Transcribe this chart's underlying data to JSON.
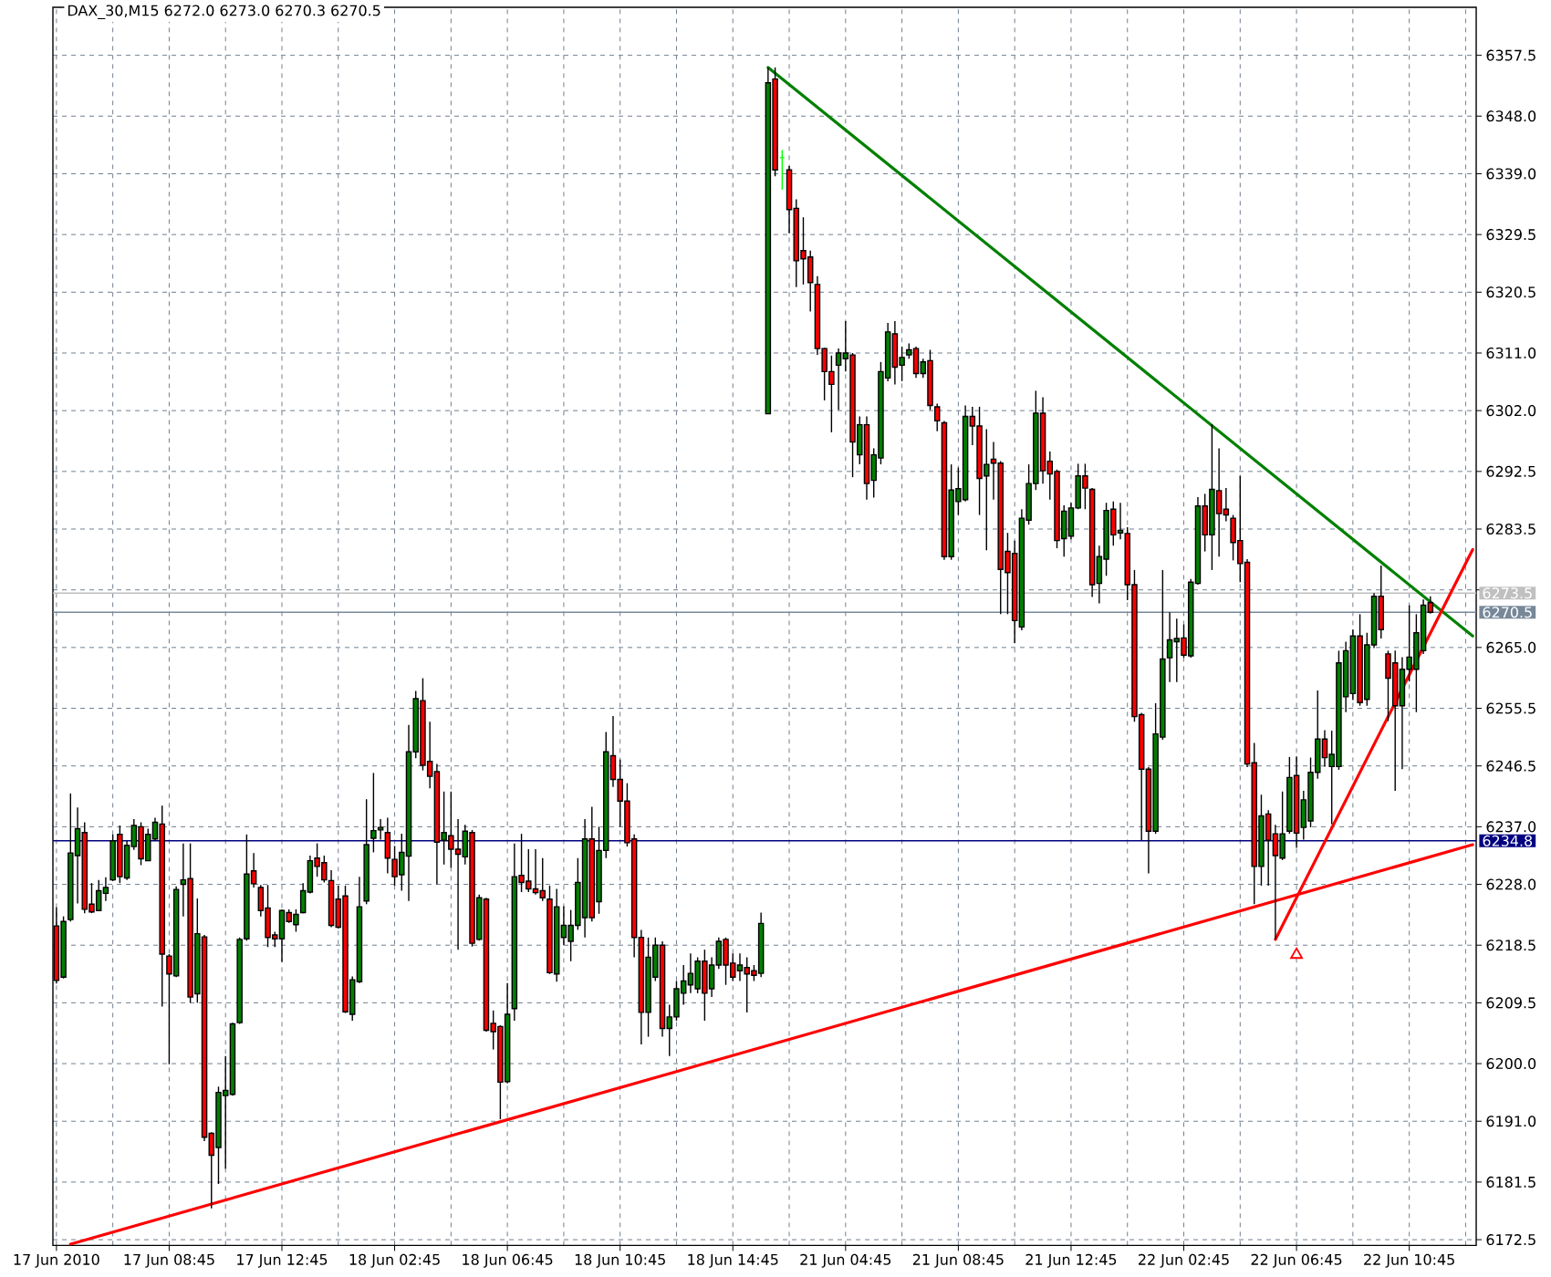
{
  "chart_data": {
    "type": "candlestick",
    "title": "DAX_30,M15 6272.0 6273.0 6270.3 6270.5",
    "categories": [
      "17 Jun 2010",
      null,
      null,
      null,
      null,
      null,
      null,
      null,
      null,
      null,
      null,
      null,
      null,
      null,
      null,
      null,
      "17 Jun 08:45",
      null,
      null,
      null,
      null,
      null,
      null,
      null,
      null,
      null,
      null,
      null,
      null,
      null,
      null,
      null,
      "17 Jun 12:45",
      null,
      null,
      null,
      null,
      null,
      null,
      null,
      null,
      null,
      null,
      null,
      null,
      null,
      null,
      null,
      "18 Jun 02:45",
      null,
      null,
      null,
      null,
      null,
      null,
      null,
      null,
      null,
      null,
      null,
      null,
      null,
      null,
      null,
      "18 Jun 06:45",
      null,
      null,
      null,
      null,
      null,
      null,
      null,
      null,
      null,
      null,
      null,
      null,
      null,
      null,
      null,
      "18 Jun 10:45",
      null,
      null,
      null,
      null,
      null,
      null,
      null,
      null,
      null,
      null,
      null,
      null,
      null,
      null,
      null,
      "18 Jun 14:45",
      null,
      null,
      null,
      null,
      null,
      null,
      null,
      null,
      null,
      null,
      null,
      null,
      null,
      null,
      null,
      "21 Jun 04:45",
      null,
      null,
      null,
      null,
      null,
      null,
      null,
      null,
      null,
      null,
      null,
      null,
      null,
      null,
      null,
      "21 Jun 08:45",
      null,
      null,
      null,
      null,
      null,
      null,
      null,
      null,
      null,
      null,
      null,
      null,
      null,
      null,
      null,
      "21 Jun 12:45",
      null,
      null,
      null,
      null,
      null,
      null,
      null,
      null,
      null,
      null,
      null,
      null,
      null,
      null,
      null,
      "22 Jun 02:45",
      null,
      null,
      null,
      null,
      null,
      null,
      null,
      null,
      null,
      null,
      null,
      null,
      null,
      null,
      null,
      "22 Jun 06:45",
      null,
      null,
      null,
      null,
      null,
      null,
      null,
      null,
      null,
      null,
      null,
      null,
      null,
      null,
      null,
      "22 Jun 10:45",
      null,
      null,
      null,
      null,
      null,
      null,
      null,
      null,
      null
    ],
    "ohlc": [
      [
        6221.5,
        6224.4,
        6212.5,
        6213.0
      ],
      [
        6213.5,
        6223.0,
        6213.3,
        6222.2
      ],
      [
        6222.5,
        6242.2,
        6222.2,
        6232.9
      ],
      [
        6232.5,
        6240.0,
        6225.0,
        6236.7
      ],
      [
        6236.1,
        6237.7,
        6223.5,
        6224.1
      ],
      [
        6224.9,
        6228.2,
        6223.5,
        6223.7
      ],
      [
        6223.9,
        6228.7,
        6223.9,
        6227.0
      ],
      [
        6226.6,
        6229.1,
        6225.4,
        6227.5
      ],
      [
        6228.7,
        6235.8,
        6228.5,
        6234.8
      ],
      [
        6235.8,
        6237.2,
        6228.2,
        6229.2
      ],
      [
        6229.0,
        6234.8,
        6228.7,
        6234.1
      ],
      [
        6233.9,
        6238.2,
        6233.4,
        6237.2
      ],
      [
        6237.0,
        6237.7,
        6231.0,
        6232.0
      ],
      [
        6231.7,
        6236.7,
        6231.7,
        6235.8
      ],
      [
        6235.1,
        6238.4,
        6234.8,
        6237.7
      ],
      [
        6237.4,
        6240.3,
        6208.9,
        6217.1
      ],
      [
        6216.8,
        6217.1,
        6199.9,
        6214.0
      ],
      [
        6213.7,
        6227.7,
        6213.5,
        6227.2
      ],
      [
        6228.0,
        6234.4,
        6223.0,
        6228.7
      ],
      [
        6228.9,
        6234.4,
        6209.5,
        6210.4
      ],
      [
        6210.9,
        6225.8,
        6209.5,
        6220.3
      ],
      [
        6219.8,
        6220.1,
        6187.9,
        6188.5
      ],
      [
        6189.1,
        6189.3,
        6177.4,
        6185.7
      ],
      [
        6186.9,
        6196.4,
        6181.2,
        6195.5
      ],
      [
        6195.0,
        6201.2,
        6183.6,
        6195.8
      ],
      [
        6195.2,
        6206.4,
        6195.0,
        6206.2
      ],
      [
        6206.4,
        6219.7,
        6206.2,
        6219.4
      ],
      [
        6219.5,
        6235.8,
        6219.2,
        6229.6
      ],
      [
        6230.1,
        6232.9,
        6227.5,
        6228.1
      ],
      [
        6227.5,
        6227.9,
        6223.0,
        6223.9
      ],
      [
        6224.3,
        6227.9,
        6218.2,
        6219.7
      ],
      [
        6220.1,
        6220.6,
        6218.2,
        6219.5
      ],
      [
        6219.5,
        6224.1,
        6215.9,
        6223.9
      ],
      [
        6223.6,
        6224.1,
        6222.0,
        6222.2
      ],
      [
        6221.7,
        6224.1,
        6220.6,
        6223.3
      ],
      [
        6223.6,
        6228.2,
        6223.5,
        6227.0
      ],
      [
        6226.8,
        6232.5,
        6226.6,
        6231.7
      ],
      [
        6232.1,
        6234.4,
        6229.2,
        6230.8
      ],
      [
        6231.4,
        6232.5,
        6228.3,
        6228.7
      ],
      [
        6228.6,
        6230.2,
        6221.3,
        6221.6
      ],
      [
        6225.7,
        6227.8,
        6221.1,
        6221.3
      ],
      [
        6226.2,
        6227.8,
        6207.9,
        6208.1
      ],
      [
        6207.7,
        6213.6,
        6206.7,
        6213.1
      ],
      [
        6212.8,
        6229.2,
        6212.6,
        6224.5
      ],
      [
        6225.4,
        6241.3,
        6224.9,
        6234.2
      ],
      [
        6235.2,
        6245.4,
        6233.0,
        6236.4
      ],
      [
        6236.5,
        6238.2,
        6235.0,
        6236.9
      ],
      [
        6236.1,
        6238.4,
        6229.7,
        6232.1
      ],
      [
        6231.9,
        6234.0,
        6227.8,
        6229.2
      ],
      [
        6229.5,
        6235.9,
        6227.0,
        6233.0
      ],
      [
        6232.4,
        6252.9,
        6225.4,
        6248.7
      ],
      [
        6248.7,
        6258.2,
        6247.7,
        6257.0
      ],
      [
        6256.7,
        6260.2,
        6245.8,
        6246.6
      ],
      [
        6247.2,
        6253.4,
        6243.0,
        6244.9
      ],
      [
        6245.6,
        6246.8,
        6228.0,
        6234.6
      ],
      [
        6234.9,
        6242.5,
        6231.1,
        6236.1
      ],
      [
        6235.6,
        6242.5,
        6230.6,
        6233.5
      ],
      [
        6233.5,
        6238.2,
        6217.8,
        6232.7
      ],
      [
        6232.3,
        6237.3,
        6231.1,
        6236.3
      ],
      [
        6236.1,
        6236.5,
        6218.3,
        6218.8
      ],
      [
        6219.4,
        6226.4,
        6219.2,
        6225.9
      ],
      [
        6225.7,
        6225.9,
        6205.0,
        6205.2
      ],
      [
        6206.3,
        6208.3,
        6202.2,
        6205.0
      ],
      [
        6205.8,
        6206.0,
        6191.3,
        6197.1
      ],
      [
        6197.2,
        6212.6,
        6196.9,
        6207.7
      ],
      [
        6208.6,
        6234.4,
        6206.7,
        6229.2
      ],
      [
        6229.4,
        6235.9,
        6226.8,
        6228.3
      ],
      [
        6228.5,
        6233.5,
        6226.8,
        6227.3
      ],
      [
        6227.3,
        6233.5,
        6226.4,
        6226.7
      ],
      [
        6227.0,
        6232.1,
        6225.4,
        6225.9
      ],
      [
        6225.7,
        6227.8,
        6214.0,
        6214.2
      ],
      [
        6214.0,
        6227.3,
        6212.8,
        6224.5
      ],
      [
        6219.7,
        6224.6,
        6218.5,
        6221.6
      ],
      [
        6219.1,
        6224.0,
        6216.0,
        6221.6
      ],
      [
        6221.6,
        6232.1,
        6220.9,
        6228.3
      ],
      [
        6222.8,
        6238.2,
        6219.7,
        6235.1
      ],
      [
        6235.1,
        6240.1,
        6222.2,
        6222.8
      ],
      [
        6225.3,
        6237.0,
        6223.4,
        6233.3
      ],
      [
        6233.3,
        6251.8,
        6232.1,
        6248.7
      ],
      [
        6248.1,
        6254.3,
        6243.2,
        6244.4
      ],
      [
        6244.4,
        6247.5,
        6237.0,
        6241.0
      ],
      [
        6241.0,
        6243.8,
        6233.9,
        6234.5
      ],
      [
        6235.1,
        6235.8,
        6216.6,
        6219.7
      ],
      [
        6219.7,
        6220.9,
        6203.0,
        6208.0
      ],
      [
        6208.0,
        6219.7,
        6204.2,
        6216.6
      ],
      [
        6213.5,
        6219.7,
        6212.9,
        6218.5
      ],
      [
        6218.5,
        6219.1,
        6204.2,
        6205.5
      ],
      [
        6205.5,
        6209.2,
        6201.2,
        6207.3
      ],
      [
        6207.3,
        6212.9,
        6206.7,
        6211.7
      ],
      [
        6211.0,
        6215.4,
        6209.2,
        6212.9
      ],
      [
        6212.3,
        6217.2,
        6211.0,
        6214.1
      ],
      [
        6211.7,
        6216.6,
        6211.0,
        6216.0
      ],
      [
        6216.0,
        6217.8,
        6206.7,
        6211.0
      ],
      [
        6211.7,
        6216.6,
        6210.4,
        6215.4
      ],
      [
        6215.4,
        6219.7,
        6214.8,
        6219.1
      ],
      [
        6219.4,
        6219.7,
        6212.3,
        6215.4
      ],
      [
        6215.7,
        6217.2,
        6212.9,
        6213.5
      ],
      [
        6214.5,
        6217.2,
        6212.9,
        6215.4
      ],
      [
        6215.0,
        6216.6,
        6208.0,
        6214.0
      ],
      [
        6214.5,
        6215.4,
        6212.9,
        6213.8
      ],
      [
        6214.1,
        6223.6,
        6213.5,
        6221.9
      ],
      [
        6301.5,
        6355.6,
        6301.5,
        6353.2
      ],
      [
        6353.8,
        6355.6,
        6338.6,
        6339.6
      ],
      [
        6341.5,
        6342.7,
        6336.5,
        6341.5
      ],
      [
        6339.6,
        6340.2,
        6329.7,
        6333.4
      ],
      [
        6333.6,
        6335.0,
        6321.3,
        6325.4
      ],
      [
        6327.0,
        6332.2,
        6321.7,
        6325.7
      ],
      [
        6326.0,
        6327.0,
        6317.5,
        6322.0
      ],
      [
        6321.7,
        6323.0,
        6310.7,
        6311.7
      ],
      [
        6311.7,
        6311.8,
        6303.6,
        6308.1
      ],
      [
        6308.1,
        6310.6,
        6298.6,
        6306.1
      ],
      [
        6309.1,
        6311.7,
        6302.1,
        6311.0
      ],
      [
        6310.1,
        6316.0,
        6308.1,
        6311.0
      ],
      [
        6310.7,
        6311.0,
        6291.6,
        6297.1
      ],
      [
        6295.1,
        6301.1,
        6293.6,
        6299.8
      ],
      [
        6299.8,
        6301.1,
        6288.1,
        6290.6
      ],
      [
        6291.1,
        6296.1,
        6288.4,
        6295.1
      ],
      [
        6294.6,
        6309.6,
        6293.6,
        6308.1
      ],
      [
        6307.1,
        6315.7,
        6306.6,
        6314.3
      ],
      [
        6314.0,
        6316.0,
        6306.1,
        6308.8
      ],
      [
        6309.1,
        6312.0,
        6306.6,
        6310.3
      ],
      [
        6310.7,
        6312.5,
        6310.1,
        6311.5
      ],
      [
        6311.7,
        6312.0,
        6307.1,
        6307.8
      ],
      [
        6307.8,
        6310.1,
        6307.1,
        6309.6
      ],
      [
        6309.8,
        6311.5,
        6302.1,
        6302.8
      ],
      [
        6302.6,
        6303.1,
        6298.8,
        6300.4
      ],
      [
        6300.1,
        6300.4,
        6278.7,
        6279.2
      ],
      [
        6279.2,
        6293.6,
        6278.7,
        6289.6
      ],
      [
        6287.8,
        6293.1,
        6285.7,
        6289.8
      ],
      [
        6288.1,
        6302.8,
        6287.8,
        6301.1
      ],
      [
        6301.1,
        6302.6,
        6296.6,
        6299.6
      ],
      [
        6299.6,
        6302.6,
        6285.7,
        6291.4
      ],
      [
        6291.8,
        6299.1,
        6280.2,
        6293.6
      ],
      [
        6294.4,
        6297.1,
        6288.1,
        6293.8
      ],
      [
        6293.8,
        6294.1,
        6270.2,
        6277.2
      ],
      [
        6280.0,
        6282.9,
        6270.2,
        6276.7
      ],
      [
        6279.7,
        6281.7,
        6265.7,
        6269.2
      ],
      [
        6268.2,
        6286.6,
        6267.7,
        6285.2
      ],
      [
        6284.9,
        6293.6,
        6284.2,
        6290.6
      ],
      [
        6290.6,
        6305.1,
        6289.6,
        6301.6
      ],
      [
        6301.6,
        6304.1,
        6290.6,
        6292.6
      ],
      [
        6294.1,
        6295.6,
        6288.1,
        6292.1
      ],
      [
        6292.5,
        6292.8,
        6280.5,
        6281.7
      ],
      [
        6282.0,
        6287.2,
        6279.2,
        6286.3
      ],
      [
        6282.4,
        6287.6,
        6281.9,
        6286.8
      ],
      [
        6286.8,
        6293.7,
        6286.6,
        6291.8
      ],
      [
        6291.8,
        6293.7,
        6286.6,
        6289.9
      ],
      [
        6289.7,
        6289.9,
        6272.9,
        6274.8
      ],
      [
        6275.0,
        6280.9,
        6271.9,
        6279.2
      ],
      [
        6278.8,
        6287.6,
        6276.2,
        6286.4
      ],
      [
        6286.6,
        6287.8,
        6280.9,
        6282.6
      ],
      [
        6282.9,
        6287.6,
        6281.9,
        6283.3
      ],
      [
        6282.8,
        6283.8,
        6272.4,
        6274.8
      ],
      [
        6274.8,
        6277.1,
        6253.4,
        6254.2
      ],
      [
        6254.5,
        6254.8,
        6234.9,
        6246.0
      ],
      [
        6246.0,
        6246.3,
        6229.7,
        6236.3
      ],
      [
        6236.3,
        6256.3,
        6235.9,
        6251.5
      ],
      [
        6251.0,
        6277.1,
        6250.6,
        6263.2
      ],
      [
        6263.4,
        6270.5,
        6259.6,
        6266.2
      ],
      [
        6265.9,
        6269.5,
        6259.6,
        6266.4
      ],
      [
        6266.5,
        6268.6,
        6263.4,
        6263.8
      ],
      [
        6263.7,
        6275.7,
        6263.4,
        6275.2
      ],
      [
        6275.0,
        6288.5,
        6274.8,
        6287.1
      ],
      [
        6287.1,
        6289.0,
        6280.0,
        6282.6
      ],
      [
        6282.6,
        6299.9,
        6277.1,
        6289.7
      ],
      [
        6289.5,
        6296.1,
        6279.2,
        6285.9
      ],
      [
        6286.6,
        6289.9,
        6284.7,
        6285.7
      ],
      [
        6285.2,
        6285.7,
        6278.6,
        6281.4
      ],
      [
        6281.7,
        6291.8,
        6275.2,
        6278.1
      ],
      [
        6278.3,
        6278.8,
        6246.3,
        6246.8
      ],
      [
        6247.0,
        6250.1,
        6224.9,
        6230.8
      ],
      [
        6230.8,
        6242.0,
        6227.8,
        6238.7
      ],
      [
        6239.0,
        6239.6,
        6227.8,
        6234.9
      ],
      [
        6235.9,
        6237.3,
        6219.4,
        6232.5
      ],
      [
        6232.1,
        6242.5,
        6231.8,
        6235.9
      ],
      [
        6236.3,
        6247.9,
        6235.9,
        6244.7
      ],
      [
        6245.0,
        6248.0,
        6233.7,
        6236.0
      ],
      [
        6236.9,
        6242.6,
        6235.0,
        6241.2
      ],
      [
        6237.9,
        6247.8,
        6236.9,
        6245.5
      ],
      [
        6245.5,
        6258.3,
        6244.5,
        6250.7
      ],
      [
        6250.7,
        6252.1,
        6246.4,
        6247.8
      ],
      [
        6246.4,
        6252.0,
        6237.4,
        6248.3
      ],
      [
        6246.4,
        6264.5,
        6245.9,
        6262.6
      ],
      [
        6257.3,
        6265.9,
        6254.9,
        6264.5
      ],
      [
        6257.8,
        6267.8,
        6256.8,
        6266.8
      ],
      [
        6266.8,
        6270.2,
        6255.9,
        6256.4
      ],
      [
        6256.9,
        6267.3,
        6255.9,
        6265.4
      ],
      [
        6265.4,
        6273.5,
        6264.9,
        6273.0
      ],
      [
        6273.0,
        6277.8,
        6266.4,
        6267.8
      ],
      [
        6264.0,
        6264.5,
        6253.5,
        6260.2
      ],
      [
        6262.6,
        6264.5,
        6242.6,
        6255.9
      ],
      [
        6255.9,
        6263.5,
        6246.0,
        6261.6
      ],
      [
        6261.6,
        6271.6,
        6259.7,
        6263.5
      ],
      [
        6261.6,
        6270.2,
        6254.9,
        6267.3
      ],
      [
        6264.5,
        6272.5,
        6264.0,
        6271.6
      ],
      [
        6272.0,
        6273.0,
        6270.3,
        6270.5
      ],
      null,
      null,
      null,
      null,
      null,
      null
    ],
    "colors": [
      "#ff0000",
      "#008000",
      "#008000",
      "#008000",
      "#ff0000",
      "#ff0000",
      "#008000",
      "#008000",
      "#008000",
      "#ff0000",
      "#008000",
      "#008000",
      "#ff0000",
      "#008000",
      "#008000",
      "#ff0000",
      "#ff0000",
      "#008000",
      "#008000",
      "#ff0000",
      "#008000",
      "#ff0000",
      "#ff0000",
      "#008000",
      "#008000",
      "#008000",
      "#008000",
      "#008000",
      "#ff0000",
      "#ff0000",
      "#ff0000",
      "#ff0000",
      "#008000",
      "#ff0000",
      "#008000",
      "#008000",
      "#008000",
      "#ff0000",
      "#ff0000",
      "#ff0000",
      "#ff0000",
      "#ff0000",
      "#008000",
      "#008000",
      "#008000",
      "#008000",
      "#008000",
      "#ff0000",
      "#ff0000",
      "#008000",
      "#008000",
      "#008000",
      "#ff0000",
      "#ff0000",
      "#ff0000",
      "#008000",
      "#ff0000",
      "#ff0000",
      "#008000",
      "#ff0000",
      "#008000",
      "#ff0000",
      "#ff0000",
      "#ff0000",
      "#008000",
      "#008000",
      "#ff0000",
      "#ff0000",
      "#ff0000",
      "#ff0000",
      "#ff0000",
      "#008000",
      "#008000",
      "#008000",
      "#008000",
      "#008000",
      "#ff0000",
      "#008000",
      "#008000",
      "#ff0000",
      "#ff0000",
      "#ff0000",
      "#ff0000",
      "#ff0000",
      "#008000",
      "#008000",
      "#ff0000",
      "#008000",
      "#008000",
      "#008000",
      "#008000",
      "#008000",
      "#ff0000",
      "#008000",
      "#008000",
      "#ff0000",
      "#ff0000",
      "#008000",
      "#ff0000",
      "#ff0000",
      "#008000",
      "#008000",
      "#ff0000",
      "#00ff00",
      "#ff0000",
      "#ff0000",
      "#ff0000",
      "#ff0000",
      "#ff0000",
      "#ff0000",
      "#ff0000",
      "#008000",
      "#008000",
      "#ff0000",
      "#008000",
      "#ff0000",
      "#008000",
      "#008000",
      "#008000",
      "#ff0000",
      "#008000",
      "#008000",
      "#ff0000",
      "#008000",
      "#ff0000",
      "#ff0000",
      "#ff0000",
      "#008000",
      "#008000",
      "#008000",
      "#ff0000",
      "#ff0000",
      "#008000",
      "#ff0000",
      "#ff0000",
      "#ff0000",
      "#ff0000",
      "#008000",
      "#008000",
      "#008000",
      "#ff0000",
      "#ff0000",
      "#ff0000",
      "#008000",
      "#008000",
      "#008000",
      "#ff0000",
      "#ff0000",
      "#008000",
      "#008000",
      "#ff0000",
      "#008000",
      "#ff0000",
      "#ff0000",
      "#ff0000",
      "#ff0000",
      "#008000",
      "#008000",
      "#008000",
      "#008000",
      "#ff0000",
      "#008000",
      "#008000",
      "#ff0000",
      "#008000",
      "#ff0000",
      "#ff0000",
      "#ff0000",
      "#ff0000",
      "#ff0000",
      "#ff0000",
      "#008000",
      "#ff0000",
      "#ff0000",
      "#008000",
      "#008000",
      "#ff0000",
      "#008000",
      "#008000",
      "#008000",
      "#ff0000",
      "#008000",
      "#008000",
      "#008000",
      "#008000",
      "#ff0000",
      "#008000",
      "#008000",
      "#ff0000",
      "#ff0000",
      "#ff0000",
      "#008000",
      "#008000",
      "#008000",
      "#008000",
      "#ff0000",
      null,
      null,
      null,
      null,
      null,
      null
    ],
    "series": [
      {
        "type": "line",
        "color": "#008000",
        "values": [
          null,
          null,
          null,
          null,
          null,
          null,
          null,
          null,
          null,
          null,
          null,
          null,
          null,
          null,
          null,
          null,
          null,
          null,
          null,
          null,
          null,
          null,
          null,
          null,
          null,
          null,
          null,
          null,
          null,
          null,
          null,
          null,
          null,
          null,
          null,
          null,
          null,
          null,
          null,
          null,
          null,
          null,
          null,
          null,
          null,
          null,
          null,
          null,
          null,
          null,
          null,
          null,
          null,
          null,
          null,
          null,
          null,
          null,
          null,
          null,
          null,
          null,
          null,
          null,
          null,
          null,
          null,
          null,
          null,
          null,
          null,
          null,
          null,
          null,
          null,
          null,
          null,
          null,
          null,
          null,
          null,
          null,
          null,
          null,
          null,
          null,
          null,
          null,
          null,
          null,
          null,
          null,
          null,
          null,
          null,
          null,
          null,
          null,
          null,
          null,
          null,
          6355.6,
          null,
          null,
          null,
          null,
          null,
          null,
          null,
          null,
          null,
          null,
          null,
          null,
          null,
          null,
          null,
          null,
          null,
          null,
          null,
          null,
          null,
          null,
          null,
          null,
          null,
          null,
          null,
          null,
          null,
          null,
          null,
          null,
          null,
          null,
          null,
          null,
          null,
          null,
          null,
          null,
          null,
          null,
          null,
          null,
          null,
          null,
          null,
          null,
          null,
          null,
          null,
          null,
          null,
          null,
          null,
          null,
          null,
          null,
          null,
          null,
          null,
          null,
          null,
          null,
          null,
          null,
          null,
          null,
          null,
          null,
          null,
          null,
          null,
          null,
          null,
          null,
          null,
          null,
          null,
          null,
          null,
          null,
          null,
          null,
          null,
          null,
          null,
          null,
          null,
          null,
          null,
          null,
          null,
          null,
          null,
          null,
          null,
          null,
          null,
          6266.8
        ]
      },
      {
        "type": "line",
        "color": "#ff0000",
        "values": [
          null,
          null,
          6171.8,
          null,
          null,
          null,
          null,
          null,
          null,
          null,
          null,
          null,
          null,
          null,
          null,
          null,
          null,
          null,
          null,
          null,
          null,
          null,
          null,
          null,
          null,
          null,
          null,
          null,
          null,
          null,
          null,
          null,
          null,
          null,
          null,
          null,
          null,
          null,
          null,
          null,
          null,
          null,
          null,
          null,
          null,
          null,
          null,
          null,
          null,
          null,
          null,
          null,
          null,
          null,
          null,
          null,
          null,
          null,
          null,
          null,
          null,
          null,
          null,
          null,
          null,
          null,
          null,
          null,
          null,
          null,
          null,
          null,
          null,
          null,
          null,
          null,
          null,
          null,
          null,
          null,
          null,
          null,
          null,
          null,
          null,
          null,
          null,
          null,
          null,
          null,
          null,
          null,
          null,
          null,
          null,
          null,
          null,
          null,
          null,
          null,
          null,
          null,
          null,
          null,
          null,
          null,
          null,
          null,
          null,
          null,
          null,
          null,
          null,
          null,
          null,
          null,
          null,
          null,
          null,
          null,
          null,
          null,
          null,
          null,
          null,
          null,
          null,
          null,
          null,
          null,
          null,
          null,
          null,
          null,
          null,
          null,
          null,
          null,
          null,
          null,
          null,
          null,
          null,
          null,
          null,
          null,
          null,
          null,
          null,
          null,
          null,
          null,
          null,
          null,
          null,
          null,
          null,
          null,
          null,
          null,
          null,
          null,
          null,
          null,
          null,
          null,
          null,
          null,
          null,
          null,
          null,
          null,
          null,
          null,
          null,
          null,
          null,
          null,
          null,
          null,
          null,
          null,
          null,
          null,
          null,
          null,
          null,
          null,
          null,
          null,
          null,
          null,
          null,
          null,
          null,
          null,
          null,
          null,
          null,
          null,
          null,
          6234.2
        ]
      },
      {
        "type": "line",
        "color": "#ff0000",
        "values": [
          null,
          null,
          null,
          null,
          null,
          null,
          null,
          null,
          null,
          null,
          null,
          null,
          null,
          null,
          null,
          null,
          null,
          null,
          null,
          null,
          null,
          null,
          null,
          null,
          null,
          null,
          null,
          null,
          null,
          null,
          null,
          null,
          null,
          null,
          null,
          null,
          null,
          null,
          null,
          null,
          null,
          null,
          null,
          null,
          null,
          null,
          null,
          null,
          null,
          null,
          null,
          null,
          null,
          null,
          null,
          null,
          null,
          null,
          null,
          null,
          null,
          null,
          null,
          null,
          null,
          null,
          null,
          null,
          null,
          null,
          null,
          null,
          null,
          null,
          null,
          null,
          null,
          null,
          null,
          null,
          null,
          null,
          null,
          null,
          null,
          null,
          null,
          null,
          null,
          null,
          null,
          null,
          null,
          null,
          null,
          null,
          null,
          null,
          null,
          null,
          null,
          null,
          null,
          null,
          null,
          null,
          null,
          null,
          null,
          null,
          null,
          null,
          null,
          null,
          null,
          null,
          null,
          null,
          null,
          null,
          null,
          null,
          null,
          null,
          null,
          null,
          null,
          null,
          null,
          null,
          null,
          null,
          null,
          null,
          null,
          null,
          null,
          null,
          null,
          null,
          null,
          null,
          null,
          null,
          null,
          null,
          null,
          null,
          null,
          null,
          null,
          null,
          null,
          null,
          null,
          null,
          null,
          null,
          null,
          null,
          null,
          null,
          null,
          null,
          null,
          null,
          null,
          null,
          null,
          null,
          null,
          null,
          null,
          6219.4,
          null,
          null,
          null,
          null,
          null,
          null,
          null,
          null,
          null,
          null,
          null,
          null,
          null,
          null,
          null,
          null,
          null,
          null,
          null,
          null,
          null,
          null,
          null,
          null,
          null,
          null,
          null,
          6280.3
        ]
      },
      {
        "type": "scatter",
        "color": "#ff0000",
        "marker": "triangle",
        "values": [
          null,
          null,
          null,
          null,
          null,
          null,
          null,
          null,
          null,
          null,
          null,
          null,
          null,
          null,
          null,
          null,
          null,
          null,
          null,
          null,
          null,
          null,
          null,
          null,
          null,
          null,
          null,
          null,
          null,
          null,
          null,
          null,
          null,
          null,
          null,
          null,
          null,
          null,
          null,
          null,
          null,
          null,
          null,
          null,
          null,
          null,
          null,
          null,
          null,
          null,
          null,
          null,
          null,
          null,
          null,
          null,
          null,
          null,
          null,
          null,
          null,
          null,
          null,
          null,
          null,
          null,
          null,
          null,
          null,
          null,
          null,
          null,
          null,
          null,
          null,
          null,
          null,
          null,
          null,
          null,
          null,
          null,
          null,
          null,
          null,
          null,
          null,
          null,
          null,
          null,
          null,
          null,
          null,
          null,
          null,
          null,
          null,
          null,
          null,
          null,
          null,
          null,
          null,
          null,
          null,
          null,
          null,
          null,
          null,
          null,
          null,
          null,
          null,
          null,
          null,
          null,
          null,
          null,
          null,
          null,
          null,
          null,
          null,
          null,
          null,
          null,
          null,
          null,
          null,
          null,
          null,
          null,
          null,
          null,
          null,
          null,
          null,
          null,
          null,
          null,
          null,
          null,
          null,
          null,
          null,
          null,
          null,
          null,
          null,
          null,
          null,
          null,
          null,
          null,
          null,
          null,
          null,
          null,
          null,
          null,
          null,
          null,
          null,
          null,
          null,
          null,
          null,
          null,
          null,
          null,
          null,
          null,
          null,
          null,
          null,
          null,
          6217.0,
          null,
          null,
          null,
          null,
          null,
          null,
          null,
          null,
          null,
          null,
          null,
          null,
          null,
          null,
          null,
          null,
          null,
          null,
          null,
          null,
          null,
          null,
          null,
          null,
          null
        ]
      }
    ],
    "ref_lines": [
      {
        "axis": "y",
        "value": 6273.5,
        "label": "6273.5",
        "color": "#c0c0c0"
      },
      {
        "axis": "y",
        "value": 6270.5,
        "label": "6270.5",
        "color": "#778899"
      },
      {
        "axis": "y",
        "value": 6234.8,
        "label": "6234.8",
        "color": "#000080"
      }
    ],
    "ylim": [
      6171.6,
      6365.0
    ],
    "yticks": [
      {
        "value": 6172.5,
        "label": "6172.5"
      },
      {
        "value": 6181.5,
        "label": "6181.5"
      },
      {
        "value": 6191.0,
        "label": "6191.0"
      },
      {
        "value": 6200.0,
        "label": "6200.0"
      },
      {
        "value": 6209.5,
        "label": "6209.5"
      },
      {
        "value": 6218.5,
        "label": "6218.5"
      },
      {
        "value": 6228.0,
        "label": "6228.0"
      },
      {
        "value": 6237.0,
        "label": "6237.0"
      },
      {
        "value": 6246.5,
        "label": "6246.5"
      },
      {
        "value": 6255.5,
        "label": "6255.5"
      },
      {
        "value": 6265.0,
        "label": "6265.0"
      },
      {
        "value": 6274.0,
        "label": null
      },
      {
        "value": 6283.5,
        "label": "6283.5"
      },
      {
        "value": 6292.5,
        "label": "6292.5"
      },
      {
        "value": 6302.0,
        "label": "6302.0"
      },
      {
        "value": 6311.0,
        "label": "6311.0"
      },
      {
        "value": 6320.5,
        "label": "6320.5"
      },
      {
        "value": 6329.5,
        "label": "6329.5"
      },
      {
        "value": 6339.0,
        "label": "6339.0"
      },
      {
        "value": 6348.0,
        "label": "6348.0"
      },
      {
        "value": 6357.5,
        "label": "6357.5"
      }
    ],
    "grid": true
  }
}
